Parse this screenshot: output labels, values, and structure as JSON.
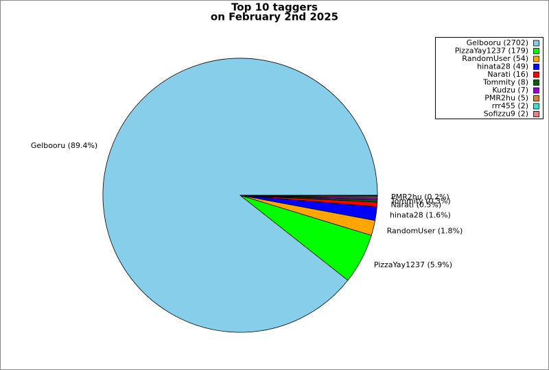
{
  "chart_data": {
    "type": "pie",
    "title": [
      "Top 10 taggers",
      "on February 2nd 2025"
    ],
    "categories": [
      "Gelbooru (2702)",
      "PizzaYay1237 (179)",
      "RandomUser (54)",
      "hinata28 (49)",
      "Narati (16)",
      "Tommity (8)",
      "Kudzu (7)",
      "PMR2hu (5)",
      "rrr455 (2)",
      "Sofizzu9 (2)"
    ],
    "values": [
      2702,
      179,
      54,
      49,
      16,
      8,
      7,
      5,
      2,
      2
    ],
    "slice_labels": [
      "Gelbooru (89.4%)",
      "PizzaYay1237 (5.9%)",
      "RandomUser (1.8%)",
      "hinata28 (1.6%)",
      "Narati (0.5%)",
      "Tommity (0.3%)",
      null,
      "PMR2hu (0.2%)",
      null,
      null
    ],
    "colors": [
      "#87ceeb",
      "#00ff00",
      "#ffa500",
      "#0000ff",
      "#ff0000",
      "#006400",
      "#9400d3",
      "#cd853f",
      "#40e0d0",
      "#f08080"
    ],
    "legend": "upper right"
  }
}
